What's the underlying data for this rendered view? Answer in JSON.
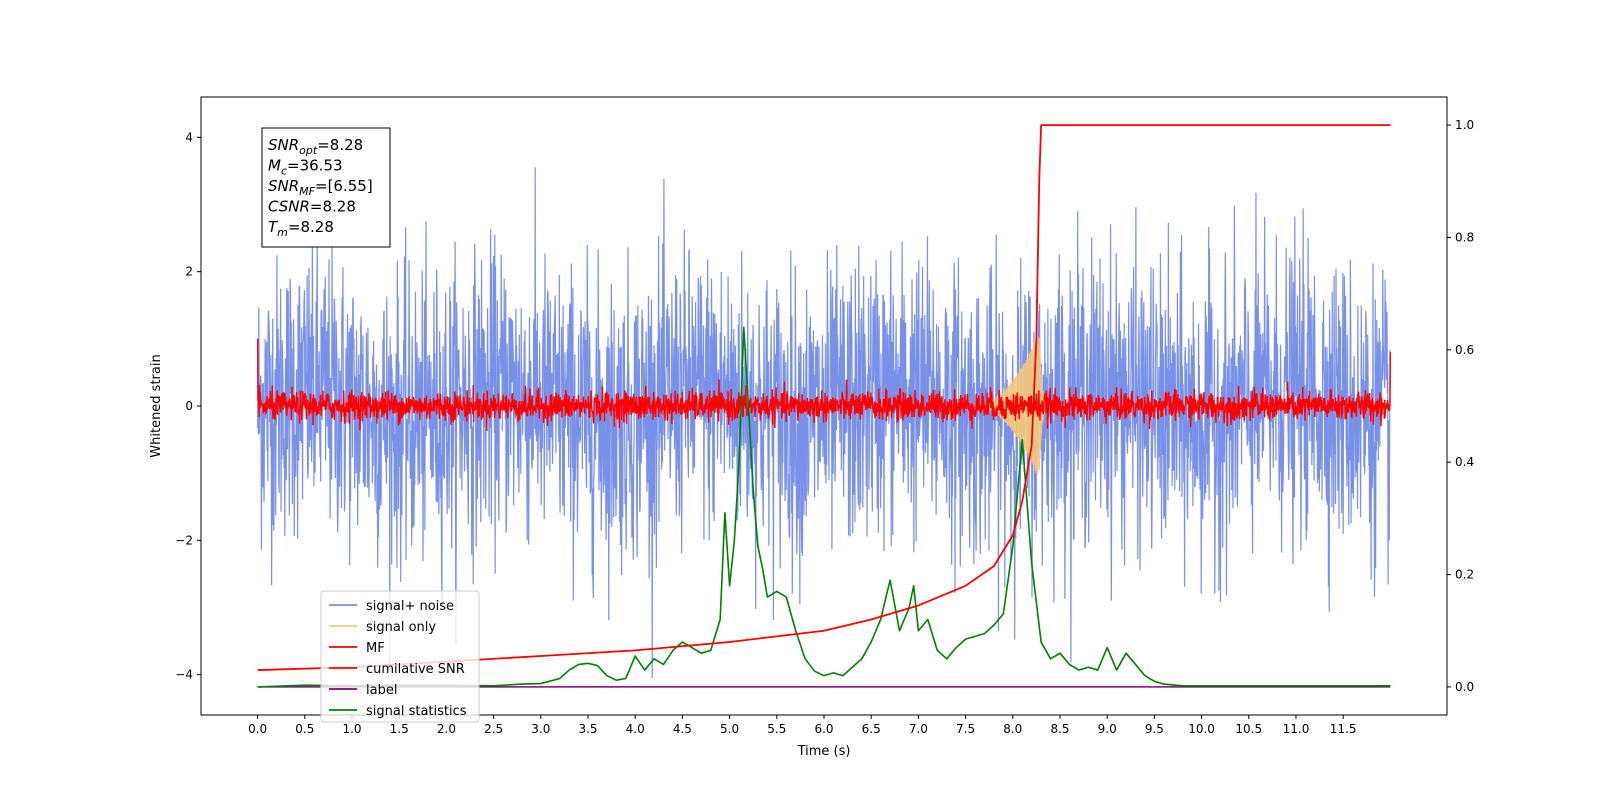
{
  "chart_data": {
    "type": "line",
    "xlabel": "Time (s)",
    "ylabel": "Whitened strain",
    "xlim": [
      -0.6,
      12.6
    ],
    "ylim": [
      -4.6,
      4.6
    ],
    "y2lim": [
      -0.05,
      1.05
    ],
    "xticks": [
      "0.0",
      "0.5",
      "1.0",
      "1.5",
      "2.0",
      "2.5",
      "3.0",
      "3.5",
      "4.0",
      "4.5",
      "5.0",
      "5.5",
      "6.0",
      "6.5",
      "7.0",
      "7.5",
      "8.0",
      "8.5",
      "9.0",
      "9.5",
      "10.0",
      "10.5",
      "11.0",
      "11.5"
    ],
    "yticks": [
      "4",
      "2",
      "0",
      "−2",
      "−4"
    ],
    "y2ticks": [
      "1.0",
      "0.8",
      "0.6",
      "0.4",
      "0.2",
      "0.0"
    ],
    "legend_position": "lower-left",
    "annotation": {
      "lines": [
        {
          "sym": "SNR",
          "sub": "opt",
          "val": "=8.28"
        },
        {
          "sym": "M",
          "sub": "c",
          "val": "=36.53"
        },
        {
          "sym": "SNR",
          "sub": "MF",
          "val": "=[6.55]"
        },
        {
          "sym": "CSNR",
          "sub": "",
          "val": "=8.28"
        },
        {
          "sym": "T",
          "sub": "m",
          "val": "=8.28"
        }
      ]
    },
    "series": [
      {
        "name": "signal+ noise",
        "color": "#7890e8",
        "axis": "left",
        "description_noise_std": 1.0,
        "x_range": [
          0.0,
          12.0
        ]
      },
      {
        "name": "signal only",
        "color": "#f5c87a",
        "axis": "left",
        "peak_time": 8.28,
        "peak_amplitude": 1.1
      },
      {
        "name": "MF",
        "color": "#ff0000",
        "axis": "left",
        "x_range": [
          0.0,
          12.0
        ],
        "band": 0.3
      },
      {
        "name": "cumilative SNR",
        "color": "#ff0000",
        "axis": "right",
        "x": [
          0.0,
          1.0,
          2.0,
          3.0,
          4.0,
          5.0,
          6.0,
          6.5,
          7.0,
          7.5,
          7.8,
          8.0,
          8.1,
          8.2,
          8.25,
          8.28,
          8.3,
          9.0,
          10.0,
          11.0,
          12.0
        ],
        "y": [
          0.03,
          0.035,
          0.045,
          0.055,
          0.065,
          0.08,
          0.1,
          0.12,
          0.145,
          0.18,
          0.215,
          0.27,
          0.33,
          0.43,
          0.62,
          0.9,
          1.0,
          1.0,
          1.0,
          1.0,
          1.0
        ]
      },
      {
        "name": "label",
        "color": "#800080",
        "axis": "right",
        "x": [
          0.0,
          12.0
        ],
        "y": [
          0.0,
          0.0
        ]
      },
      {
        "name": "signal statistics",
        "color": "#008000",
        "axis": "right",
        "x": [
          0.0,
          0.5,
          1.0,
          1.5,
          2.0,
          2.5,
          2.8,
          3.0,
          3.2,
          3.3,
          3.4,
          3.5,
          3.6,
          3.7,
          3.8,
          3.9,
          4.0,
          4.1,
          4.2,
          4.3,
          4.4,
          4.5,
          4.6,
          4.7,
          4.8,
          4.9,
          4.95,
          5.0,
          5.05,
          5.1,
          5.15,
          5.2,
          5.25,
          5.3,
          5.35,
          5.4,
          5.5,
          5.6,
          5.7,
          5.8,
          5.9,
          6.0,
          6.1,
          6.2,
          6.3,
          6.4,
          6.5,
          6.6,
          6.7,
          6.8,
          6.9,
          6.95,
          7.0,
          7.1,
          7.2,
          7.3,
          7.4,
          7.5,
          7.6,
          7.7,
          7.8,
          7.9,
          8.0,
          8.1,
          8.2,
          8.3,
          8.4,
          8.5,
          8.6,
          8.7,
          8.8,
          8.9,
          9.0,
          9.1,
          9.2,
          9.3,
          9.4,
          9.5,
          9.6,
          9.8,
          10.0,
          11.0,
          11.5,
          12.0
        ],
        "y": [
          0.0,
          0.003,
          0.002,
          0.003,
          0.003,
          0.002,
          0.005,
          0.006,
          0.015,
          0.03,
          0.04,
          0.042,
          0.038,
          0.02,
          0.012,
          0.015,
          0.055,
          0.03,
          0.05,
          0.04,
          0.065,
          0.08,
          0.07,
          0.06,
          0.065,
          0.12,
          0.31,
          0.18,
          0.26,
          0.4,
          0.64,
          0.5,
          0.35,
          0.25,
          0.21,
          0.16,
          0.17,
          0.16,
          0.1,
          0.05,
          0.028,
          0.02,
          0.025,
          0.02,
          0.035,
          0.05,
          0.08,
          0.12,
          0.19,
          0.1,
          0.14,
          0.18,
          0.1,
          0.12,
          0.065,
          0.05,
          0.07,
          0.085,
          0.09,
          0.095,
          0.11,
          0.13,
          0.25,
          0.44,
          0.22,
          0.08,
          0.05,
          0.06,
          0.04,
          0.03,
          0.035,
          0.03,
          0.07,
          0.03,
          0.06,
          0.04,
          0.02,
          0.01,
          0.005,
          0.002,
          0.002,
          0.002,
          0.002,
          0.002
        ]
      }
    ]
  }
}
